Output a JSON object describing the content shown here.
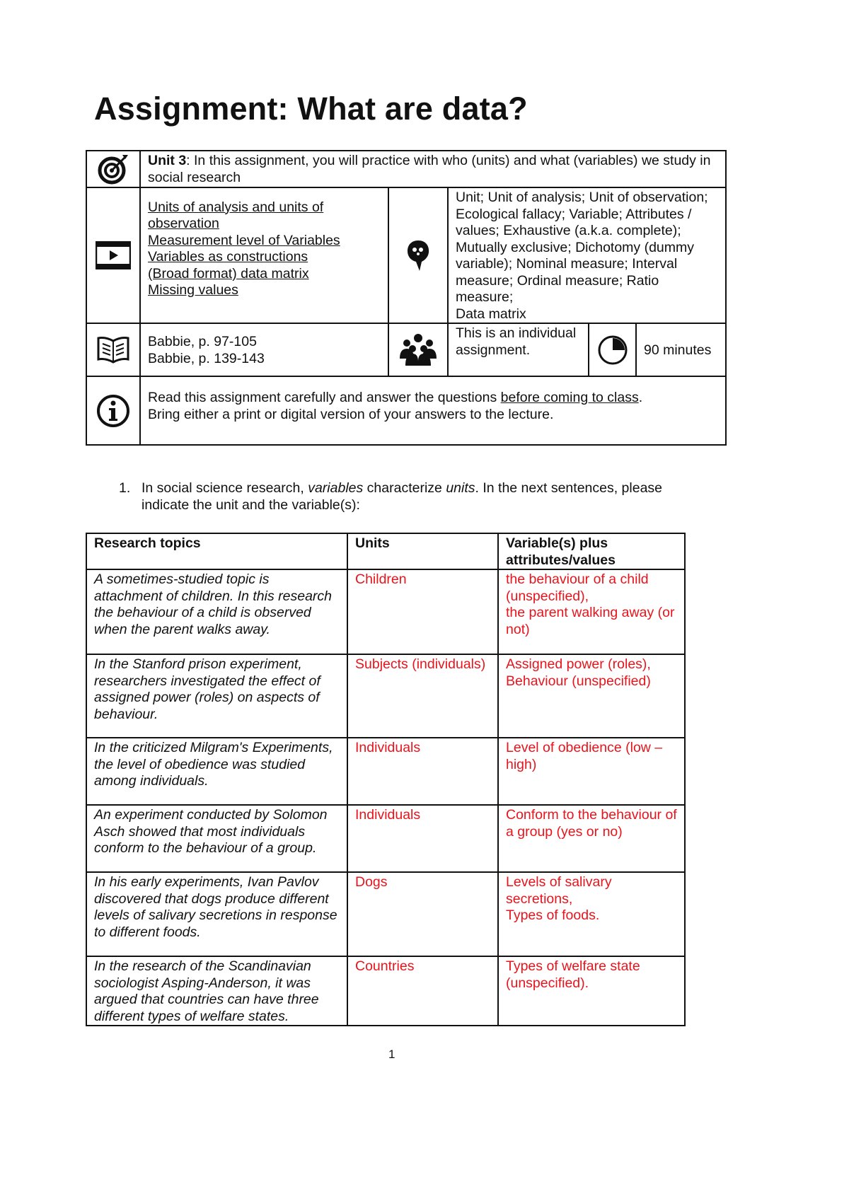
{
  "title": "Assignment: What are data?",
  "info_table": {
    "unit_label": "Unit 3",
    "unit_text": ": In this assignment, you will practice with who (units) and what (variables) we study in social research",
    "videos": [
      "Units of analysis and units of observation",
      "Measurement level of Variables",
      "Variables as constructions",
      "(Broad format) data matrix",
      "Missing values"
    ],
    "concepts": "Unit; Unit of analysis; Unit of observation; Ecological fallacy; Variable; Attributes / values; Exhaustive (a.k.a. complete); Mutually exclusive; Dichotomy (dummy variable); Nominal measure; Interval measure; Ordinal measure; Ratio measure;",
    "concepts_last": "Data matrix",
    "readings": [
      "Babbie, p. 97-105",
      "Babbie, p. 139-143"
    ],
    "assignment_type": "This is an individual assignment.",
    "duration": "90 minutes",
    "instructions_pre": "Read this assignment carefully and answer the questions ",
    "instructions_link": "before coming to class",
    "instructions_post": ".",
    "instructions_line2": "Bring either a print or digital version of your answers to the lecture."
  },
  "question1": {
    "number": "1.",
    "text_parts": [
      "In social science research, ",
      "variables",
      " characterize ",
      "units",
      ". In the next sentences, please indicate the unit and the variable(s):"
    ]
  },
  "topics_table": {
    "headers": [
      "Research topics",
      "Units",
      "Variable(s) plus attributes/values"
    ],
    "rows": [
      {
        "topic": "A sometimes-studied topic is attachment of children. In this research the behaviour of a child is observed when the parent walks away.",
        "unit": "Children",
        "variables": "the behaviour of a child (unspecified),\nthe parent walking away (or not)"
      },
      {
        "topic": "In the Stanford prison experiment, researchers investigated the effect of assigned power (roles) on aspects of behaviour.",
        "unit": "Subjects (individuals)",
        "variables": "Assigned power (roles),\nBehaviour (unspecified)"
      },
      {
        "topic": "In the criticized Milgram's Experiments, the level of obedience was studied among individuals.",
        "unit": "Individuals",
        "variables": "Level of obedience (low – high)"
      },
      {
        "topic": "An experiment conducted by Solomon Asch showed that most individuals conform to the behaviour of a group.",
        "unit": "Individuals",
        "variables": "Conform to the behaviour of a group (yes or no)"
      },
      {
        "topic": "In his early experiments, Ivan Pavlov discovered that dogs produce different levels of salivary secretions in response to different foods.",
        "unit": "Dogs",
        "variables": "Levels of salivary secretions,\nTypes of foods."
      },
      {
        "topic": "In the research of the Scandinavian sociologist Asping-Anderson, it was argued that countries can have three different types of welfare states.",
        "unit": "Countries",
        "variables": "Types of welfare state (unspecified)."
      }
    ]
  },
  "page_number": "1",
  "colors": {
    "answer": "#e8141c",
    "text": "#111111"
  }
}
